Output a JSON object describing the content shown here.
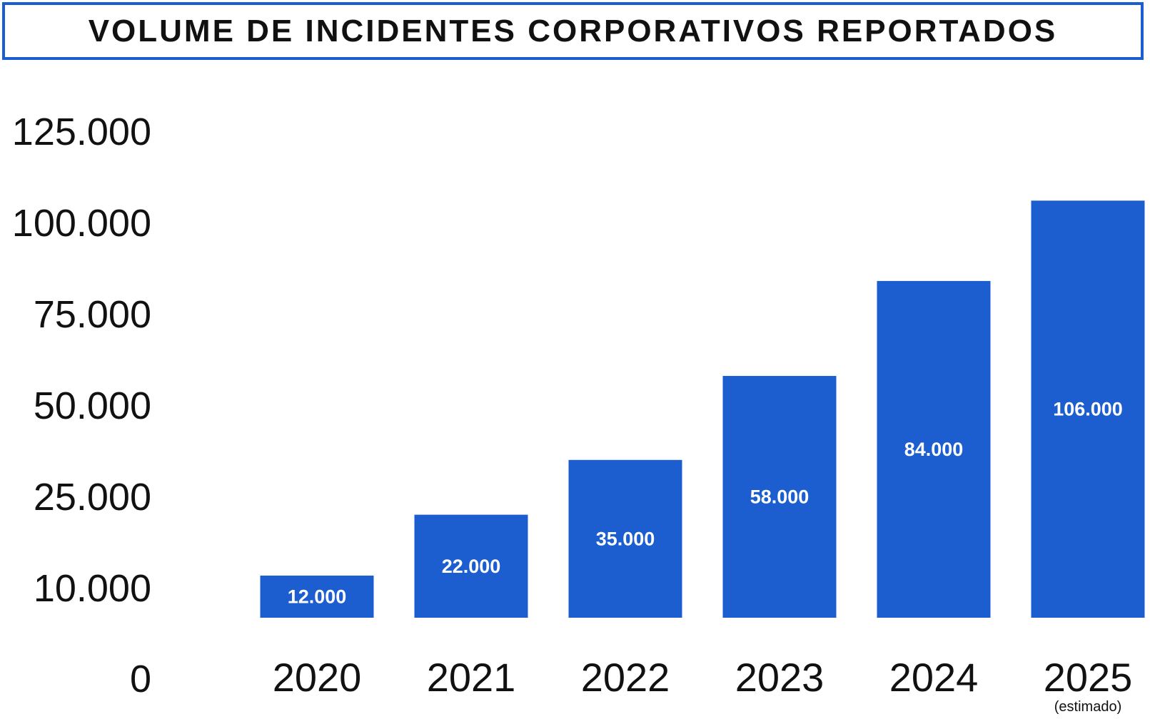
{
  "chart_data": {
    "type": "bar",
    "title": "VOLUME DE INCIDENTES CORPORATIVOS REPORTADOS",
    "categories": [
      "2020",
      "2021",
      "2022",
      "2023",
      "2024",
      "2025"
    ],
    "category_notes": [
      "",
      "",
      "",
      "",
      "",
      "(estimado)"
    ],
    "values": [
      12000,
      22000,
      35000,
      58000,
      84000,
      106000
    ],
    "value_labels": [
      "12.000",
      "22.000",
      "35.000",
      "58.000",
      "84.000",
      "106.000"
    ],
    "y_ticks": [
      0,
      10000,
      25000,
      50000,
      75000,
      100000,
      125000
    ],
    "y_tick_labels": [
      "0",
      "10.000",
      "25.000",
      "50.000",
      "75.000",
      "100.000",
      "125.000"
    ],
    "xlabel": "",
    "ylabel": "",
    "grid": false,
    "legend": "none",
    "bar_color": "#1c5ecf"
  }
}
